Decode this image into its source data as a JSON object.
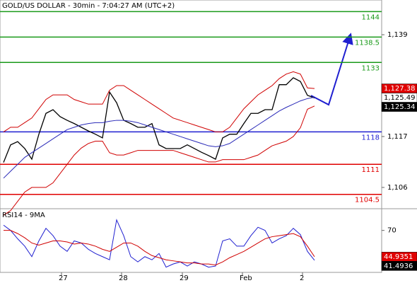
{
  "chart_data": [
    {
      "type": "line",
      "title": "GOLD/US DOLLAR - 30min - 7:04:27 AM (UTC+2)",
      "xlim": [
        -0.5,
        53.5
      ],
      "ylim": [
        1101.4,
        1146.5
      ],
      "yticks": [
        {
          "value": 1139,
          "label": "1,139"
        },
        {
          "value": 1117,
          "label": "1,117"
        },
        {
          "value": 1106,
          "label": "1,106"
        }
      ],
      "levels": [
        {
          "value": 1144,
          "color": "#1a9a1a"
        },
        {
          "value": 1138.5,
          "color": "#1a9a1a"
        },
        {
          "value": 1133,
          "color": "#1a9a1a"
        },
        {
          "value": 1118,
          "color": "#1f1fd0"
        },
        {
          "value": 1111,
          "color": "#e00000"
        },
        {
          "value": 1104.5,
          "color": "#e00000"
        }
      ],
      "series": [
        {
          "color": "#000000",
          "values": [
            1111.4,
            1115.2,
            1115.9,
            1114.4,
            1112.1,
            1117.5,
            1122.0,
            1122.8,
            1121.3,
            1120.5,
            1119.8,
            1119.0,
            1118.2,
            1117.5,
            1116.7,
            1126.6,
            1124.3,
            1120.5,
            1119.8,
            1119.0,
            1119.0,
            1119.8,
            1115.2,
            1114.4,
            1114.4,
            1114.4,
            1115.2,
            1114.4,
            1113.6,
            1112.9,
            1112.1,
            1116.7,
            1117.5,
            1117.5,
            1119.8,
            1122.0,
            1122.0,
            1122.8,
            1122.8,
            1128.2,
            1128.2,
            1129.7,
            1128.9,
            1125.9,
            1125.34
          ]
        },
        {
          "color": "#d00000",
          "values": [
            1118,
            1119,
            1119,
            1120,
            1121,
            1123,
            1125,
            1126,
            1126,
            1126,
            1125,
            1124.5,
            1124,
            1124,
            1124,
            1127,
            1128,
            1128,
            1127,
            1126,
            1125,
            1124,
            1123,
            1122,
            1121,
            1120.5,
            1120,
            1119.5,
            1119,
            1118.5,
            1118,
            1118,
            1119,
            1121,
            1123,
            1124.5,
            1126,
            1127,
            1128,
            1129.5,
            1130.5,
            1131,
            1130.5,
            1127.5,
            1127.38
          ]
        },
        {
          "color": "#d00000",
          "values": [
            1100,
            1101,
            1103,
            1105,
            1106,
            1106,
            1106,
            1107,
            1109,
            1111,
            1113,
            1114.5,
            1115.5,
            1116,
            1116,
            1113.5,
            1113,
            1113,
            1113.5,
            1114,
            1114,
            1114,
            1114,
            1114,
            1114,
            1113.5,
            1113,
            1112.5,
            1112,
            1111.5,
            1111.5,
            1112,
            1112,
            1112,
            1112,
            1112.5,
            1113,
            1114,
            1115,
            1115.5,
            1116,
            1117,
            1118.9,
            1122.9,
            1123.6
          ]
        },
        {
          "color": "#2a2ab8",
          "values": [
            1108,
            1109.5,
            1111,
            1112.5,
            1113.5,
            1114.5,
            1115.5,
            1116.5,
            1117.5,
            1118.5,
            1119,
            1119.5,
            1119.8,
            1120,
            1120,
            1120.3,
            1120.5,
            1120.5,
            1120.3,
            1120,
            1119.5,
            1119,
            1118.5,
            1118,
            1117.5,
            1117,
            1116.5,
            1116,
            1115.5,
            1115,
            1114.8,
            1115,
            1115.5,
            1116.5,
            1117.5,
            1118.5,
            1119.5,
            1120.5,
            1121.5,
            1122.5,
            1123.3,
            1124,
            1124.7,
            1125.2,
            1125.49
          ]
        }
      ],
      "price_labels": [
        {
          "value": 1127.38,
          "label": "1,127.38",
          "color": "#e00000",
          "text_color": "#ffffff"
        },
        {
          "value": 1125.49,
          "label": "1,125.49",
          "color": "#ffffff",
          "text_color": "#000000"
        },
        {
          "value": 1125.34,
          "label": "1,125.34",
          "color": "#000000",
          "text_color": "#ffffff"
        }
      ]
    },
    {
      "type": "line",
      "title": "RSI14 - 9MA",
      "xlim": [
        -0.5,
        53.5
      ],
      "ylim": [
        30,
        90
      ],
      "yticks": [
        70
      ],
      "xticks": [
        {
          "value": 8.2,
          "label": "27"
        },
        {
          "value": 16.7,
          "label": "28"
        },
        {
          "value": 25.3,
          "label": "29"
        },
        {
          "value": 33.8,
          "label": "Feb"
        },
        {
          "value": 42.3,
          "label": "2"
        }
      ],
      "series": [
        {
          "color": "#1f1fd0",
          "values": [
            75,
            70,
            62,
            55,
            45,
            60,
            72,
            65,
            55,
            50,
            60,
            58,
            52,
            48,
            45,
            42,
            80,
            65,
            45,
            40,
            45,
            42,
            48,
            35,
            38,
            40,
            36,
            40,
            38,
            35,
            36,
            60,
            62,
            55,
            55,
            65,
            73,
            70,
            58,
            62,
            65,
            72,
            66,
            50,
            41.4936
          ]
        },
        {
          "color": "#d00000",
          "values": [
            70,
            70,
            67,
            63,
            58,
            56,
            58,
            60,
            60,
            59,
            57,
            58,
            57,
            55,
            52,
            50,
            54,
            58,
            58,
            55,
            50,
            46,
            44,
            42,
            41,
            40,
            39,
            39,
            38,
            38,
            37,
            40,
            44,
            47,
            50,
            54,
            58,
            62,
            64,
            65,
            66,
            67,
            64,
            55,
            44.9351
          ]
        }
      ],
      "price_labels": [
        {
          "value": 44.9351,
          "label": "44.9351",
          "color": "#e00000",
          "text_color": "#ffffff"
        },
        {
          "value": 41.4936,
          "label": "41.4936",
          "color": "#000000",
          "text_color": "#ffffff"
        }
      ]
    }
  ]
}
